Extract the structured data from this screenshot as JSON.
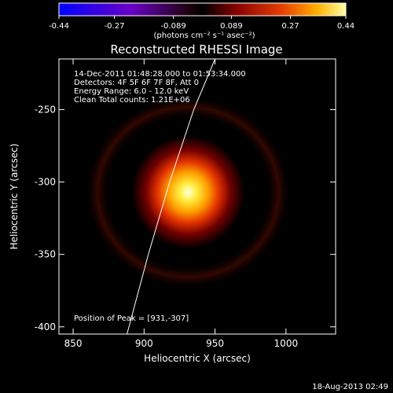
{
  "colorbar": {
    "tick_labels": [
      "-0.44",
      "-0.27",
      "-0.089",
      "0.089",
      "0.27",
      "0.44"
    ],
    "range": [
      -0.44,
      0.44
    ],
    "unit_label": "(photons cm⁻² s⁻¹ asec⁻²)"
  },
  "plot": {
    "title": "Reconstructed RHESSI Image",
    "xlabel": "Heliocentric X (arcsec)",
    "ylabel": "Heliocentric Y (arcsec)",
    "x_ticks": [
      "850",
      "900",
      "950",
      "1000"
    ],
    "y_ticks": [
      "-250",
      "-300",
      "-350",
      "-400"
    ],
    "xlim": [
      840,
      1035
    ],
    "ylim": [
      -405,
      -215
    ]
  },
  "annotation": {
    "line1": "14-Dec-2011 01:48:28.000 to 01:53:34.000",
    "line2": "Detectors: 4F 5F 6F 7F 8F, Att 0",
    "line3": "Energy Range: 6.0 - 12.0 keV",
    "line4": "Clean    Total counts: 1.21E+06",
    "peak": "Position of Peak = [931,-307]"
  },
  "source": {
    "center_x": 931,
    "center_y": -307,
    "limb_curve": [
      [
        888,
        -405
      ],
      [
        903,
        -350
      ],
      [
        918,
        -300
      ],
      [
        935,
        -250
      ],
      [
        950,
        -215
      ]
    ]
  },
  "footer": {
    "timestamp": "18-Aug-2013 02:49"
  }
}
